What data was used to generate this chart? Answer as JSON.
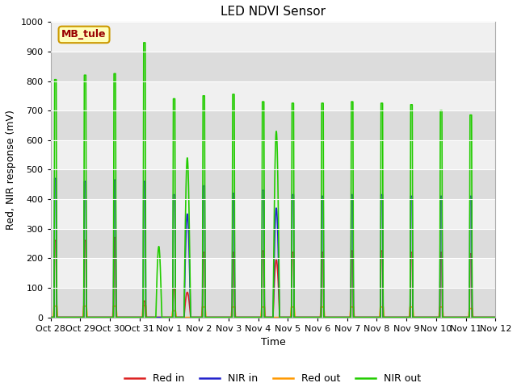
{
  "title": "LED NDVI Sensor",
  "ylabel": "Red, NIR response (mV)",
  "xlabel": "Time",
  "ylim": [
    0,
    1000
  ],
  "label_box_text": "MB_tule",
  "legend_labels": [
    "Red in",
    "NIR in",
    "Red out",
    "NIR out"
  ],
  "colors": {
    "red_in": "#dd2222",
    "nir_in": "#2222cc",
    "red_out": "#ff9900",
    "nir_out": "#22cc00"
  },
  "background_color": "#e8e8e8",
  "band_color_light": "#f0f0f0",
  "band_color_dark": "#dcdcdc",
  "fig_background": "#ffffff",
  "tick_labels": [
    "Oct 28",
    "Oct 29",
    "Oct 30",
    "Oct 31",
    "Nov 1",
    "Nov 2",
    "Nov 3",
    "Nov 4",
    "Nov 5",
    "Nov 6",
    "Nov 7",
    "Nov 8",
    "Nov 9",
    "Nov 10",
    "Nov 11",
    "Nov 12"
  ],
  "title_fontsize": 11,
  "axis_fontsize": 9,
  "tick_fontsize": 8,
  "legend_fontsize": 9,
  "nir_out_peaks": [
    805,
    820,
    825,
    930,
    740,
    750,
    755,
    730,
    725,
    725,
    730,
    725,
    720,
    700,
    685
  ],
  "nir_in_peaks": [
    470,
    460,
    465,
    460,
    415,
    445,
    420,
    430,
    415,
    410,
    415,
    415,
    410,
    410,
    410
  ],
  "red_in_peaks": [
    260,
    260,
    270,
    55,
    95,
    220,
    220,
    225,
    220,
    220,
    225,
    225,
    220,
    220,
    215
  ],
  "red_out_peaks": [
    38,
    38,
    38,
    40,
    22,
    35,
    35,
    35,
    35,
    35,
    35,
    35,
    35,
    35,
    30
  ],
  "oct31_bump_nir_out": 240,
  "nov1_bump_nir_out": 540,
  "nov1_bump_nir_in": 350,
  "nov1_bump_red_in": 85,
  "nov4_bump_nir_out": 630,
  "nov4_bump_nir_in": 370,
  "nov4_bump_red_in": 195
}
